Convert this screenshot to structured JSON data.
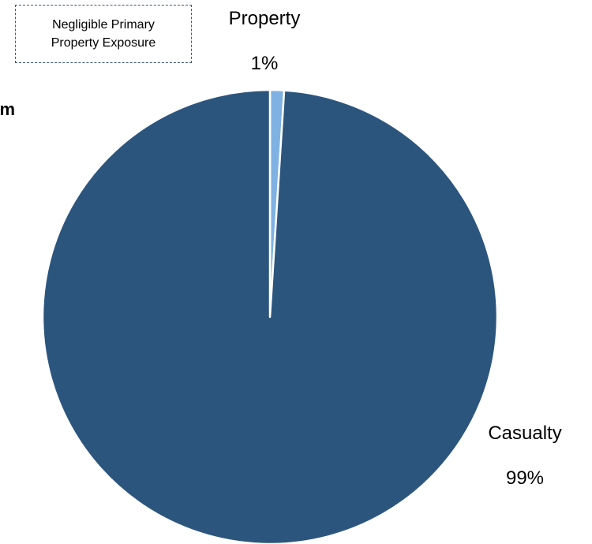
{
  "chart_data": {
    "type": "pie",
    "categories": [
      "Property",
      "Casualty"
    ],
    "values": [
      1,
      99
    ],
    "value_labels": [
      "1%",
      "99%"
    ],
    "colors": [
      "#7fb2e3",
      "#2c557e"
    ],
    "annotation": {
      "line1": "Negligible Primary",
      "line2": "Property Exposure"
    },
    "cut_text": "mm"
  }
}
